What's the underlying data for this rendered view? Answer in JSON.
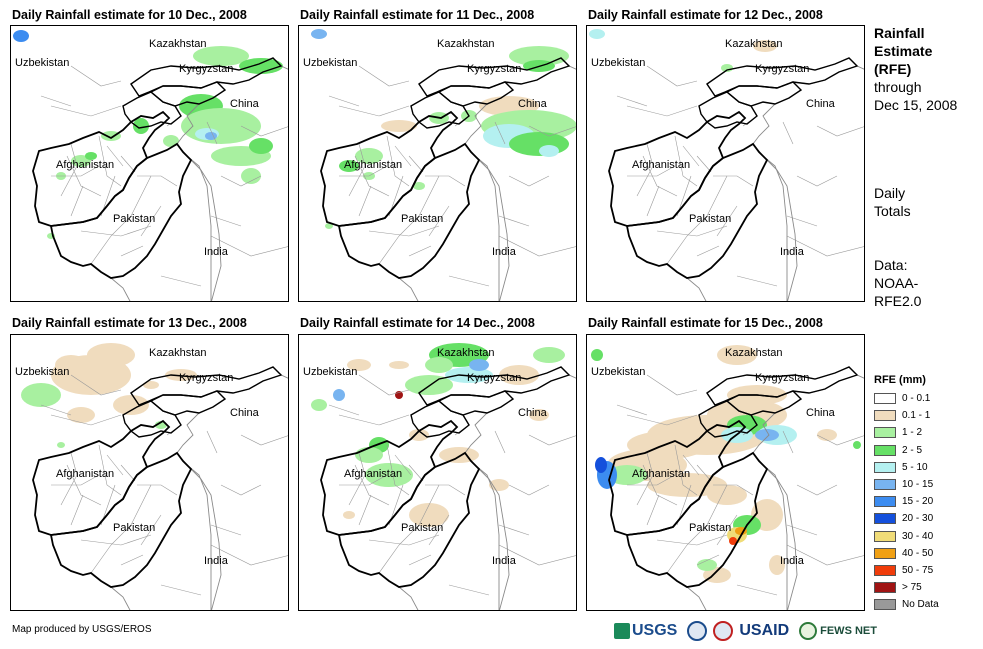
{
  "panels": [
    {
      "title": "Daily Rainfall estimate for 10 Dec., 2008",
      "day": 10
    },
    {
      "title": "Daily Rainfall estimate for 11 Dec., 2008",
      "day": 11
    },
    {
      "title": "Daily Rainfall estimate for 12 Dec., 2008",
      "day": 12
    },
    {
      "title": "Daily Rainfall estimate for 13 Dec., 2008",
      "day": 13
    },
    {
      "title": "Daily Rainfall estimate for 14 Dec., 2008",
      "day": 14
    },
    {
      "title": "Daily Rainfall estimate for 15 Dec., 2008",
      "day": 15
    }
  ],
  "country_labels": {
    "kazakhstan": "Kazakhstan",
    "uzbekistan": "Uzbekistan",
    "kyrgyzstan": "Kyrgyzstan",
    "china": "China",
    "afghanistan": "Afghanistan",
    "pakistan": "Pakistan",
    "india": "India"
  },
  "side_panel": {
    "title_line1": "Rainfall",
    "title_line2": "Estimate",
    "title_line3": "(RFE)",
    "through_line1": "through",
    "through_line2": "Dec 15, 2008",
    "daily_line1": "Daily",
    "daily_line2": "Totals",
    "data_line1": "Data:",
    "data_line2": "NOAA-",
    "data_line3": "RFE2.0"
  },
  "legend": {
    "title": "RFE (mm)",
    "items": [
      {
        "label": "0 - 0.1",
        "color": "#ffffff"
      },
      {
        "label": "0.1 - 1",
        "color": "#f0dcbe"
      },
      {
        "label": "1 - 2",
        "color": "#a8f0a0"
      },
      {
        "label": "2 - 5",
        "color": "#66e066"
      },
      {
        "label": "5 - 10",
        "color": "#b4f0f0"
      },
      {
        "label": "10 - 15",
        "color": "#78b4f0"
      },
      {
        "label": "15 - 20",
        "color": "#3c8cf0"
      },
      {
        "label": "20 - 30",
        "color": "#1450dc"
      },
      {
        "label": "30 - 40",
        "color": "#f0dc78"
      },
      {
        "label": "40 - 50",
        "color": "#f0a014"
      },
      {
        "label": "50 - 75",
        "color": "#f03c0a"
      },
      {
        "label": "> 75",
        "color": "#a01414"
      },
      {
        "label": "No Data",
        "color": "#999999"
      }
    ]
  },
  "credit": "Map produced by USGS/EROS",
  "logos": {
    "usgs": "USGS",
    "usaid": "USAID",
    "fews": "FEWS NET"
  }
}
